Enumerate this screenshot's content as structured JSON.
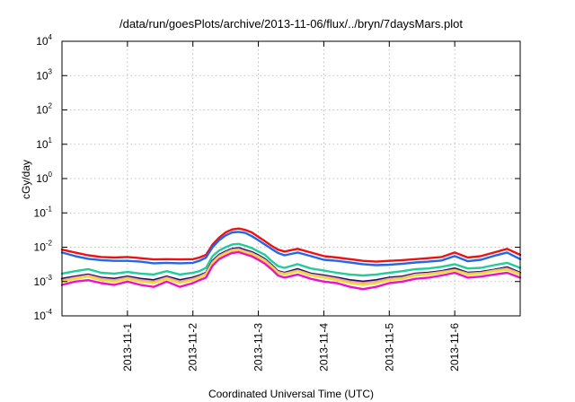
{
  "chart_data": {
    "type": "line",
    "title": "/data/run/goesPlots/archive/2013-11-06/flux/../bryn/7daysMars.plot",
    "xlabel": "Coordinated Universal Time (UTC)",
    "ylabel": "cGy/day",
    "y_scale": "log",
    "ylim": [
      0.0001,
      10000
    ],
    "y_ticks": [
      {
        "base": "10",
        "exp": "-4",
        "value": 0.0001
      },
      {
        "base": "10",
        "exp": "-3",
        "value": 0.001
      },
      {
        "base": "10",
        "exp": "-2",
        "value": 0.01
      },
      {
        "base": "10",
        "exp": "-1",
        "value": 0.1
      },
      {
        "base": "10",
        "exp": "0",
        "value": 1
      },
      {
        "base": "10",
        "exp": "1",
        "value": 10
      },
      {
        "base": "10",
        "exp": "2",
        "value": 100
      },
      {
        "base": "10",
        "exp": "3",
        "value": 1000
      },
      {
        "base": "10",
        "exp": "4",
        "value": 10000
      }
    ],
    "xlim": [
      "2013-10-31 00:00",
      "2013-11-07 00:00"
    ],
    "x_ticks": [
      "2013-11-1",
      "2013-11-2",
      "2013-11-3",
      "2013-11-4",
      "2013-11-5",
      "2013-11-6"
    ],
    "x_tick_days": [
      1,
      2,
      3,
      4,
      5,
      6
    ],
    "x_tick_values": [
      "2013-11-01",
      "2013-11-02",
      "2013-11-03",
      "2013-11-04",
      "2013-11-05",
      "2013-11-06"
    ],
    "grid": true,
    "x_days": [
      0.0,
      0.2,
      0.4,
      0.6,
      0.8,
      1.0,
      1.2,
      1.4,
      1.6,
      1.8,
      2.0,
      2.1,
      2.2,
      2.3,
      2.4,
      2.5,
      2.6,
      2.7,
      2.8,
      2.9,
      3.0,
      3.1,
      3.2,
      3.3,
      3.4,
      3.6,
      3.8,
      4.0,
      4.2,
      4.4,
      4.6,
      4.8,
      5.0,
      5.2,
      5.4,
      5.6,
      5.8,
      6.0,
      6.2,
      6.4,
      6.6,
      6.8,
      7.0
    ],
    "series": [
      {
        "color": "#ee1111",
        "values": [
          0.0085,
          0.007,
          0.0058,
          0.0052,
          0.005,
          0.0052,
          0.0048,
          0.0044,
          0.0045,
          0.0044,
          0.0045,
          0.005,
          0.006,
          0.012,
          0.019,
          0.027,
          0.033,
          0.035,
          0.032,
          0.027,
          0.02,
          0.015,
          0.011,
          0.0085,
          0.0075,
          0.009,
          0.007,
          0.0055,
          0.005,
          0.0045,
          0.004,
          0.0038,
          0.004,
          0.0042,
          0.0045,
          0.0048,
          0.0052,
          0.007,
          0.005,
          0.0055,
          0.007,
          0.009,
          0.006
        ]
      },
      {
        "color": "#2266ee",
        "values": [
          0.007,
          0.0055,
          0.0046,
          0.0042,
          0.004,
          0.004,
          0.0038,
          0.0034,
          0.0035,
          0.0034,
          0.0035,
          0.004,
          0.005,
          0.01,
          0.016,
          0.022,
          0.027,
          0.028,
          0.026,
          0.021,
          0.016,
          0.012,
          0.009,
          0.0068,
          0.0058,
          0.007,
          0.0055,
          0.0043,
          0.004,
          0.0036,
          0.0032,
          0.003,
          0.0031,
          0.0033,
          0.0036,
          0.0038,
          0.0041,
          0.0055,
          0.0039,
          0.0043,
          0.0056,
          0.007,
          0.0045
        ]
      },
      {
        "color": "#22cc99",
        "values": [
          0.0017,
          0.002,
          0.0023,
          0.0018,
          0.0017,
          0.0019,
          0.0017,
          0.0016,
          0.002,
          0.0016,
          0.0018,
          0.002,
          0.0025,
          0.0055,
          0.008,
          0.01,
          0.012,
          0.0125,
          0.011,
          0.0095,
          0.0075,
          0.006,
          0.004,
          0.0028,
          0.0025,
          0.0032,
          0.0024,
          0.0021,
          0.0018,
          0.0016,
          0.0015,
          0.0016,
          0.0018,
          0.002,
          0.0023,
          0.0024,
          0.0027,
          0.0032,
          0.0024,
          0.0025,
          0.003,
          0.0035,
          0.0025
        ]
      },
      {
        "color": "#221155",
        "values": [
          0.0012,
          0.0014,
          0.0016,
          0.0013,
          0.0012,
          0.0014,
          0.0012,
          0.0011,
          0.0014,
          0.0011,
          0.0013,
          0.0015,
          0.0018,
          0.004,
          0.006,
          0.0075,
          0.009,
          0.0095,
          0.0082,
          0.0072,
          0.0058,
          0.0045,
          0.0031,
          0.002,
          0.0018,
          0.0023,
          0.0017,
          0.0015,
          0.0013,
          0.0011,
          0.001,
          0.0011,
          0.0013,
          0.0014,
          0.0017,
          0.0018,
          0.002,
          0.0024,
          0.0018,
          0.0019,
          0.0022,
          0.0026,
          0.0018
        ]
      },
      {
        "color": "#ee99bb",
        "values": [
          0.0011,
          0.0013,
          0.0015,
          0.0012,
          0.0011,
          0.0013,
          0.0011,
          0.001,
          0.0013,
          0.001,
          0.0012,
          0.0014,
          0.0017,
          0.0037,
          0.0056,
          0.007,
          0.0084,
          0.0088,
          0.0076,
          0.0067,
          0.0054,
          0.0042,
          0.0029,
          0.0019,
          0.0017,
          0.0021,
          0.0016,
          0.0014,
          0.0012,
          0.001,
          0.0009,
          0.001,
          0.0012,
          0.0013,
          0.0016,
          0.0017,
          0.0019,
          0.0022,
          0.0017,
          0.0018,
          0.0021,
          0.0024,
          0.0017
        ]
      },
      {
        "color": "#eedd33",
        "values": [
          0.001,
          0.0012,
          0.0014,
          0.0011,
          0.001,
          0.0012,
          0.001,
          0.0009,
          0.0012,
          0.0009,
          0.0011,
          0.0013,
          0.0016,
          0.0034,
          0.0052,
          0.0065,
          0.0078,
          0.0082,
          0.0071,
          0.0062,
          0.005,
          0.0039,
          0.0027,
          0.0018,
          0.0016,
          0.002,
          0.0015,
          0.0013,
          0.0011,
          0.0009,
          0.0008,
          0.0009,
          0.0011,
          0.0012,
          0.0015,
          0.0016,
          0.0018,
          0.0021,
          0.0016,
          0.0017,
          0.002,
          0.0022,
          0.0016
        ]
      },
      {
        "color": "#ee11cc",
        "values": [
          0.0008,
          0.001,
          0.0011,
          0.0009,
          0.0008,
          0.001,
          0.0008,
          0.0007,
          0.001,
          0.0007,
          0.0009,
          0.0011,
          0.0013,
          0.0029,
          0.0045,
          0.0056,
          0.0068,
          0.0072,
          0.0062,
          0.0054,
          0.0043,
          0.0033,
          0.0023,
          0.0015,
          0.0013,
          0.0016,
          0.0012,
          0.001,
          0.0009,
          0.0007,
          0.0006,
          0.0007,
          0.0009,
          0.001,
          0.0012,
          0.0013,
          0.0015,
          0.0018,
          0.0013,
          0.0014,
          0.0016,
          0.0018,
          0.0013
        ]
      }
    ]
  }
}
